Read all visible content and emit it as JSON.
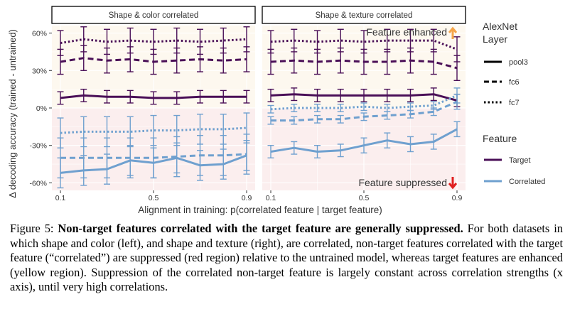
{
  "colors": {
    "target": "#4a0f57",
    "correlated": "#6fa0cf",
    "enhanced_region": "#fdf8ef",
    "suppressed_region": "#fbeeee",
    "enhanced_text": "#f5a54a",
    "suppressed_text": "#e02020"
  },
  "figure": {
    "y_axis_label": "Δ decoding accuracy (trained - untrained)",
    "x_axis_label": "Alignment in training: p(correlated feature | target feature)",
    "enhanced_label": "Feature enhanced",
    "suppressed_label": "Feature suppressed",
    "legend_layer_title_1": "AlexNet",
    "legend_layer_title_2": "Layer",
    "legend_feature_title": "Feature"
  },
  "chart_data": {
    "type": "line",
    "x": [
      0.1,
      0.2,
      0.3,
      0.4,
      0.5,
      0.6,
      0.7,
      0.8,
      0.9
    ],
    "x_ticks": [
      "0.1",
      "0.5",
      "0.9"
    ],
    "x_tick_values": [
      0.1,
      0.5,
      0.9
    ],
    "ylim": [
      -66,
      66
    ],
    "y_ticks": [
      "60%",
      "30%",
      "0%",
      "-30%",
      "-60%"
    ],
    "y_tick_values": [
      60,
      30,
      0,
      -30,
      -60
    ],
    "grid": true,
    "legend_placement": "right",
    "layers": [
      "pool3",
      "fc6",
      "fc7"
    ],
    "features": [
      "Target",
      "Correlated"
    ],
    "panels": [
      {
        "title": "Shape & color correlated",
        "series": [
          {
            "feature": "Target",
            "layer": "fc7",
            "values": [
              52,
              55,
              53,
              54,
              53,
              54,
              53,
              54,
              55
            ],
            "err": [
              10,
              10,
              10,
              10,
              10,
              10,
              10,
              10,
              10
            ]
          },
          {
            "feature": "Target",
            "layer": "fc6",
            "values": [
              37,
              40,
              38,
              39,
              37,
              38,
              39,
              38,
              39
            ],
            "err": [
              10,
              10,
              10,
              10,
              10,
              10,
              10,
              10,
              10
            ]
          },
          {
            "feature": "Target",
            "layer": "pool3",
            "values": [
              8,
              10,
              9,
              9,
              8,
              8,
              9,
              9,
              9
            ],
            "err": [
              5,
              5,
              5,
              5,
              5,
              5,
              5,
              5,
              5
            ]
          },
          {
            "feature": "Correlated",
            "layer": "fc7",
            "values": [
              -20,
              -19,
              -19,
              -19,
              -18,
              -18,
              -17,
              -17,
              -16
            ],
            "err": [
              12,
              12,
              12,
              12,
              12,
              12,
              12,
              12,
              12
            ]
          },
          {
            "feature": "Correlated",
            "layer": "fc6",
            "values": [
              -40,
              -40,
              -40,
              -40,
              -40,
              -39,
              -38,
              -38,
              -37
            ],
            "err": [
              16,
              16,
              16,
              16,
              16,
              16,
              16,
              16,
              16
            ]
          },
          {
            "feature": "Correlated",
            "layer": "pool3",
            "values": [
              -52,
              -50,
              -49,
              -42,
              -44,
              -40,
              -46,
              -45,
              -38
            ],
            "err": [
              12,
              12,
              12,
              12,
              12,
              12,
              12,
              12,
              12
            ]
          }
        ]
      },
      {
        "title": "Shape & texture correlated",
        "series": [
          {
            "feature": "Target",
            "layer": "fc7",
            "values": [
              53,
              54,
              53,
              54,
              53,
              54,
              54,
              54,
              47
            ],
            "err": [
              9,
              9,
              9,
              9,
              9,
              9,
              9,
              9,
              10
            ]
          },
          {
            "feature": "Target",
            "layer": "fc6",
            "values": [
              37,
              38,
              37,
              38,
              37,
              37,
              38,
              37,
              32
            ],
            "err": [
              10,
              10,
              10,
              10,
              10,
              10,
              10,
              10,
              10
            ]
          },
          {
            "feature": "Target",
            "layer": "pool3",
            "values": [
              10,
              11,
              10,
              10,
              10,
              10,
              10,
              11,
              6
            ],
            "err": [
              5,
              5,
              5,
              5,
              5,
              5,
              5,
              5,
              5
            ]
          },
          {
            "feature": "Correlated",
            "layer": "fc7",
            "values": [
              -1,
              0,
              0,
              0,
              1,
              0,
              1,
              2,
              10
            ],
            "err": [
              3,
              3,
              3,
              3,
              3,
              3,
              3,
              3,
              6
            ]
          },
          {
            "feature": "Correlated",
            "layer": "fc6",
            "values": [
              -10,
              -10,
              -9,
              -9,
              -7,
              -6,
              -5,
              -3,
              5
            ],
            "err": [
              3,
              3,
              3,
              3,
              3,
              3,
              3,
              3,
              6
            ]
          },
          {
            "feature": "Correlated",
            "layer": "pool3",
            "values": [
              -35,
              -32,
              -35,
              -34,
              -30,
              -26,
              -29,
              -27,
              -17
            ],
            "err": [
              5,
              5,
              5,
              5,
              6,
              6,
              6,
              6,
              6
            ]
          }
        ]
      }
    ]
  },
  "caption": {
    "label": "Figure 5: ",
    "bold": "Non-target features correlated with the target feature are generally suppressed.",
    "body": " For both datasets in which shape and color (left), and shape and texture (right), are correlated, non-target features correlated with the target feature (“correlated”) are suppressed (red region) relative to the untrained model, whereas target features are enhanced (yellow region). Suppression of the correlated non-target feature is largely constant across correlation strengths (x axis), until very high correlations."
  }
}
